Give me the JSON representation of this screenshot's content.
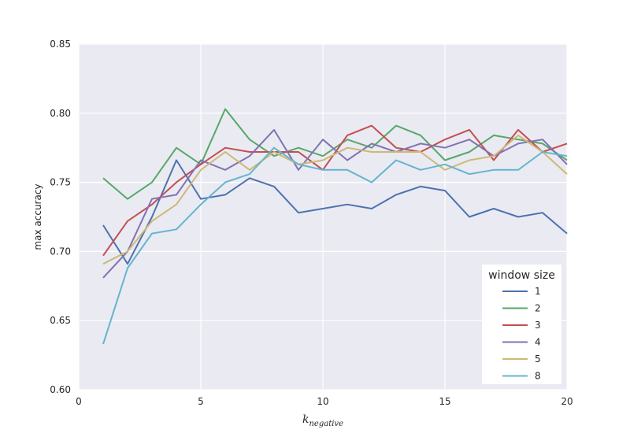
{
  "chart_data": {
    "type": "line",
    "title": "",
    "xlabel": {
      "main": "k",
      "subscript": "negative"
    },
    "ylabel": "max accuracy",
    "xlim": [
      0,
      20
    ],
    "ylim": [
      0.6,
      0.85
    ],
    "xticks": [
      0,
      5,
      10,
      15,
      20
    ],
    "yticks": [
      0.6,
      0.65,
      0.7,
      0.75,
      0.8,
      0.85
    ],
    "xtick_labels": [
      "0",
      "5",
      "10",
      "15",
      "20"
    ],
    "ytick_labels": [
      "0.60",
      "0.65",
      "0.70",
      "0.75",
      "0.80",
      "0.85"
    ],
    "grid": true,
    "legend": {
      "title": "window size",
      "placement": "lower-right"
    },
    "x": [
      1,
      2,
      3,
      4,
      5,
      6,
      7,
      8,
      9,
      10,
      11,
      12,
      13,
      14,
      15,
      16,
      17,
      18,
      19,
      20
    ],
    "series": [
      {
        "name": "1",
        "color": "#4c72b0",
        "values": [
          0.719,
          0.691,
          0.725,
          0.766,
          0.738,
          0.741,
          0.753,
          0.747,
          0.728,
          0.731,
          0.734,
          0.731,
          0.741,
          0.747,
          0.744,
          0.725,
          0.731,
          0.725,
          0.728,
          0.713
        ]
      },
      {
        "name": "2",
        "color": "#55a868",
        "values": [
          0.753,
          0.738,
          0.75,
          0.775,
          0.763,
          0.803,
          0.781,
          0.769,
          0.775,
          0.769,
          0.781,
          0.775,
          0.791,
          0.784,
          0.766,
          0.772,
          0.784,
          0.781,
          0.778,
          0.766
        ]
      },
      {
        "name": "3",
        "color": "#c44e52",
        "values": [
          0.697,
          0.722,
          0.734,
          0.75,
          0.763,
          0.775,
          0.772,
          0.772,
          0.772,
          0.759,
          0.784,
          0.791,
          0.775,
          0.772,
          0.781,
          0.788,
          0.766,
          0.788,
          0.772,
          0.778
        ]
      },
      {
        "name": "4",
        "color": "#8172b2",
        "values": [
          0.681,
          0.7,
          0.738,
          0.741,
          0.766,
          0.759,
          0.769,
          0.788,
          0.759,
          0.781,
          0.766,
          0.778,
          0.772,
          0.778,
          0.775,
          0.781,
          0.769,
          0.778,
          0.781,
          0.763
        ]
      },
      {
        "name": "5",
        "color": "#ccb974",
        "values": [
          0.691,
          0.7,
          0.722,
          0.734,
          0.759,
          0.772,
          0.759,
          0.772,
          0.763,
          0.766,
          0.775,
          0.772,
          0.772,
          0.772,
          0.759,
          0.766,
          0.769,
          0.784,
          0.772,
          0.756
        ]
      },
      {
        "name": "8",
        "color": "#64b5cd",
        "values": [
          0.633,
          0.688,
          0.713,
          0.716,
          0.734,
          0.75,
          0.756,
          0.775,
          0.763,
          0.759,
          0.759,
          0.75,
          0.766,
          0.759,
          0.763,
          0.756,
          0.759,
          0.759,
          0.772,
          0.769
        ]
      }
    ]
  }
}
